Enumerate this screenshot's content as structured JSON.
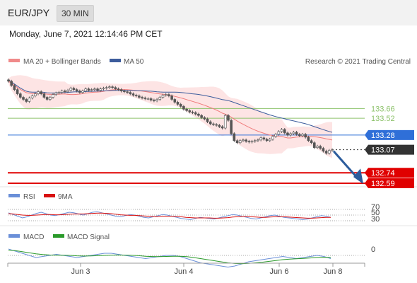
{
  "header": {
    "symbol": "EUR/JPY",
    "timeframe": "30 MIN"
  },
  "datetime": "Monday, June 7, 2021 12:14:46 PM CET",
  "legend": {
    "ma20": "MA 20 + Bollinger Bands",
    "ma50": "MA 50",
    "copyright": "Research © 2021 Trading Central"
  },
  "colors": {
    "ma20": "#f07c7c",
    "ma50": "#3c5c9c",
    "bands_fill": "#fde4e4",
    "candle": "#555555",
    "green_level": "#8dc26b",
    "blue_level": "#2f6fd8",
    "red_level": "#e00000",
    "current": "#333333",
    "arrow": "#2c5c9c",
    "rsi": "#6a8fd8",
    "rsi_ma": "#d81010",
    "macd": "#6a8fd8",
    "macd_signal": "#2a9a2a"
  },
  "chart_data": [
    {
      "type": "line",
      "title": "EUR/JPY 30 MIN",
      "price_range": [
        132.56,
        134.22
      ],
      "x_labels": [
        "Jun 3",
        "Jun 4",
        "Jun 6",
        "Jun 8"
      ],
      "candles_close": [
        134.05,
        133.99,
        133.93,
        133.87,
        133.82,
        133.79,
        133.76,
        133.81,
        133.84,
        133.87,
        133.9,
        133.87,
        133.82,
        133.79,
        133.82,
        133.86,
        133.88,
        133.89,
        133.91,
        133.9,
        133.92,
        133.95,
        133.93,
        133.91,
        133.89,
        133.91,
        133.94,
        133.92,
        133.93,
        133.94,
        133.92,
        133.94,
        133.95,
        133.96,
        133.97,
        133.96,
        133.94,
        133.93,
        133.91,
        133.9,
        133.89,
        133.87,
        133.85,
        133.84,
        133.82,
        133.81,
        133.8,
        133.8,
        133.78,
        133.77,
        133.79,
        133.82,
        133.85,
        133.86,
        133.84,
        133.79,
        133.75,
        133.72,
        133.69,
        133.65,
        133.63,
        133.61,
        133.6,
        133.58,
        133.56,
        133.53,
        133.51,
        133.47,
        133.44,
        133.43,
        133.42,
        133.4,
        133.38,
        133.56,
        133.49,
        133.3,
        133.2,
        133.17,
        133.2,
        133.21,
        133.19,
        133.18,
        133.19,
        133.2,
        133.21,
        133.24,
        133.22,
        133.2,
        133.22,
        133.26,
        133.29,
        133.33,
        133.36,
        133.31,
        133.28,
        133.3,
        133.32,
        133.29,
        133.27,
        133.29,
        133.25,
        133.2,
        133.17,
        133.1,
        133.12,
        133.09,
        133.05,
        133.02,
        133.06,
        133.07
      ],
      "levels": [
        {
          "value": "133.66",
          "kind": "resistance"
        },
        {
          "value": "133.52",
          "kind": "resistance"
        },
        {
          "value": "133.28",
          "kind": "pivot"
        },
        {
          "value": "133.07",
          "kind": "current"
        },
        {
          "value": "132.74",
          "kind": "support"
        },
        {
          "value": "132.59",
          "kind": "support"
        }
      ],
      "series": [
        {
          "name": "MA 20 + Bollinger Bands"
        },
        {
          "name": "MA 50"
        }
      ]
    },
    {
      "type": "line",
      "series": [
        {
          "name": "RSI",
          "values": [
            58,
            52,
            46,
            40,
            44,
            50,
            56,
            60,
            55,
            50,
            48,
            52,
            56,
            60,
            58,
            54,
            50,
            55,
            60,
            62,
            58,
            54,
            50,
            46,
            44,
            48,
            52,
            50,
            46,
            42,
            40,
            44,
            48,
            52,
            50,
            46,
            42,
            38,
            36,
            34,
            38,
            42,
            40,
            38,
            36,
            40,
            44,
            48,
            52,
            50,
            46,
            42,
            38,
            36,
            40,
            44,
            48,
            50,
            46,
            42,
            40,
            38,
            36,
            34,
            36,
            40,
            44,
            48,
            46,
            42
          ]
        },
        {
          "name": "9MA",
          "values": [
            55,
            54,
            52,
            50,
            49,
            49,
            50,
            51,
            52,
            52,
            51,
            51,
            52,
            53,
            54,
            54,
            54,
            55,
            56,
            57,
            57,
            56,
            55,
            53,
            51,
            50,
            49,
            49,
            48,
            47,
            46,
            45,
            45,
            46,
            46,
            46,
            45,
            44,
            42,
            41,
            40,
            40,
            40,
            40,
            39,
            39,
            40,
            41,
            43,
            44,
            45,
            45,
            44,
            43,
            42,
            42,
            43,
            44,
            44,
            44,
            43,
            42,
            41,
            40,
            39,
            39,
            40,
            41,
            42,
            42
          ]
        }
      ],
      "ticks": [
        "70",
        "50",
        "30"
      ]
    },
    {
      "type": "line",
      "series": [
        {
          "name": "MACD",
          "values": [
            0.06,
            0.04,
            0.02,
            0.0,
            -0.02,
            -0.01,
            0.0,
            0.01,
            0.0,
            -0.01,
            -0.02,
            -0.01,
            0.0,
            0.01,
            0.02,
            0.02,
            0.01,
            0.0,
            -0.01,
            -0.02,
            -0.03,
            -0.02,
            -0.01,
            0.0,
            0.0,
            -0.01,
            -0.03,
            -0.05,
            -0.07,
            -0.08,
            -0.09,
            -0.1,
            -0.11,
            -0.1,
            -0.08,
            -0.06,
            -0.05,
            -0.04,
            -0.03,
            -0.02,
            -0.01,
            -0.02,
            -0.03,
            -0.02,
            -0.01,
            0.0,
            -0.01,
            -0.03
          ]
        },
        {
          "name": "MACD Signal",
          "values": [
            0.05,
            0.045,
            0.035,
            0.025,
            0.015,
            0.008,
            0.004,
            0.003,
            0.002,
            0.0,
            -0.004,
            -0.006,
            -0.005,
            -0.003,
            0.0,
            0.003,
            0.004,
            0.003,
            0.001,
            -0.003,
            -0.008,
            -0.011,
            -0.012,
            -0.01,
            -0.008,
            -0.008,
            -0.012,
            -0.02,
            -0.03,
            -0.04,
            -0.05,
            -0.06,
            -0.07,
            -0.076,
            -0.078,
            -0.075,
            -0.07,
            -0.064,
            -0.056,
            -0.048,
            -0.04,
            -0.035,
            -0.032,
            -0.028,
            -0.024,
            -0.019,
            -0.017,
            -0.019
          ]
        }
      ],
      "ticks": [
        "0"
      ]
    }
  ]
}
